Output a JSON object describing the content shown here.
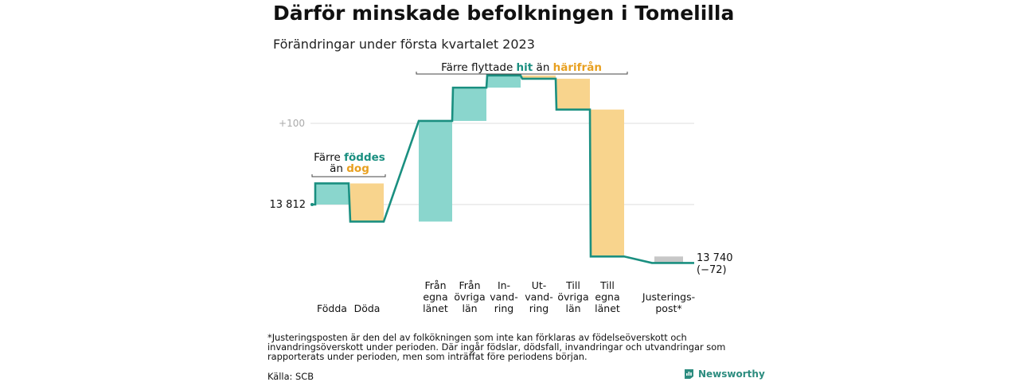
{
  "title": "Därför minskade befolkningen i Tomelilla",
  "subtitle": "Förändringar under första kvartalet 2023",
  "colors": {
    "teal_line": "#1a8f80",
    "teal_fill": "#8ad6cd",
    "orange_fill": "#f8d48d",
    "orange_text": "#e8a020",
    "gray_fill": "#c7c7c7",
    "grid": "#dddddd"
  },
  "annotations": {
    "births": {
      "prefix": "Färre ",
      "teal_word": "föddes",
      "line2_prefix": "än ",
      "orange_word": "dog"
    },
    "moves": {
      "prefix": "Färre flyttade ",
      "teal_word": "hit",
      "middle": " än ",
      "orange_word": "härifrån"
    }
  },
  "start_label": "13 812",
  "end_label": [
    "13 740",
    "(−72)"
  ],
  "gridline_label": "+100",
  "chart_data": {
    "type": "waterfall",
    "start": 13812,
    "end": 13740,
    "categories": [
      [
        "Födda"
      ],
      [
        "Döda"
      ],
      [
        "Från",
        "egna",
        "länet"
      ],
      [
        "Från",
        "övriga",
        "län"
      ],
      [
        "In-",
        "vand-",
        "ring"
      ],
      [
        "Ut-",
        "vand-",
        "ring"
      ],
      [
        "Till",
        "övriga",
        "län"
      ],
      [
        "Till",
        "egna",
        "länet"
      ],
      [
        "Justerings-",
        "post*"
      ]
    ],
    "values": [
      26,
      -47,
      124,
      41,
      15,
      -4,
      -38,
      -181,
      -8
    ],
    "tick": {
      "value": 13912,
      "label": "+100"
    }
  },
  "footnote": "*Justeringsposten är den del av folkökningen som inte kan förklaras av födelseöverskott och invandringsöverskott under perioden. Där ingår födslar, dödsfall, invandringar och utvandringar som rapporterats under perioden, men som inträffat före periodens början.",
  "source": "Källa: SCB",
  "logo_text": "Newsworthy"
}
